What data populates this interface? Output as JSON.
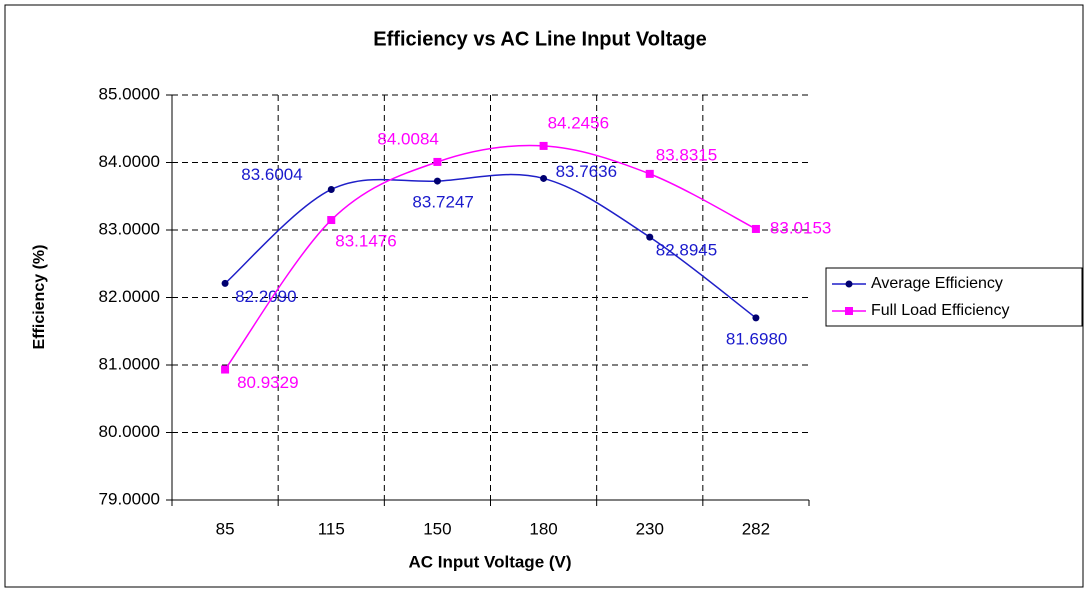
{
  "chart_data": {
    "type": "line",
    "title": "Efficiency vs AC Line Input Voltage",
    "x_label": "AC Input Voltage (V)",
    "y_label": "Efficiency (%)",
    "categories": [
      "85",
      "115",
      "150",
      "180",
      "230",
      "282"
    ],
    "series": [
      {
        "name": "Average Efficiency",
        "color": "#1f1fc8",
        "marker_color": "#000070",
        "label_color": "#1a1acc",
        "values": [
          82.209,
          83.6004,
          83.7247,
          83.7636,
          82.8945,
          81.698
        ],
        "value_labels": [
          "82.2090",
          "83.6004",
          "83.7247",
          "83.7636",
          "82.8945",
          "81.6980"
        ]
      },
      {
        "name": "Full Load Efficiency",
        "color": "#ff00ff",
        "marker_color": "#ff00ff",
        "label_color": "#ff00ff",
        "values": [
          80.9329,
          83.1476,
          84.0084,
          84.2456,
          83.8315,
          83.0153
        ],
        "value_labels": [
          "80.9329",
          "83.1476",
          "84.0084",
          "84.2456",
          "83.8315",
          "83.0153"
        ]
      }
    ],
    "ylim": [
      79,
      85
    ],
    "yticks": [
      {
        "value": 79,
        "label": "79.0000"
      },
      {
        "value": 80,
        "label": "80.0000"
      },
      {
        "value": 81,
        "label": "81.0000"
      },
      {
        "value": 82,
        "label": "82.0000"
      },
      {
        "value": 83,
        "label": "83.0000"
      },
      {
        "value": 84,
        "label": "84.0000"
      },
      {
        "value": 85,
        "label": "85.0000"
      }
    ],
    "grid": true,
    "smooth": true,
    "legend": "right"
  }
}
